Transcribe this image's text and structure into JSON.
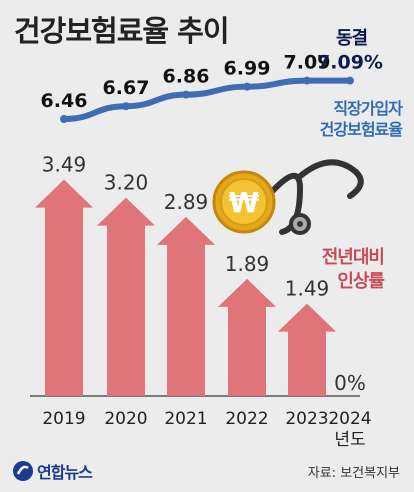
{
  "title": "건강보험료율 추이",
  "freeze_label": "동결",
  "rate_legend": [
    "직장가입자",
    "건강보험료율"
  ],
  "change_legend": [
    "전년대비",
    "인상률"
  ],
  "x_axis_unit": "년도",
  "source": "자료: 보건복지부",
  "logo": {
    "text": "연합뉴스",
    "mark": "yonhap-logo-icon"
  },
  "colors": {
    "line": "#3f6cb5",
    "bar": "#e0747b",
    "text": "#222222",
    "freeze": "#0d1b4d",
    "rate_legend": "#2e6db4",
    "change_legend": "#c94b57"
  },
  "illustration": {
    "icons": [
      "stethoscope-icon",
      "won-coin-icon"
    ]
  },
  "chart_data": [
    {
      "type": "line",
      "x": [
        "2019",
        "2020",
        "2021",
        "2022",
        "2023",
        "2024"
      ],
      "series": [
        {
          "name": "직장가입자 건강보험료율",
          "values": [
            6.46,
            6.67,
            6.86,
            6.99,
            7.09,
            7.09
          ],
          "labels": [
            "6.46",
            "6.67",
            "6.86",
            "6.99",
            "7.09",
            "7.09%"
          ]
        }
      ]
    },
    {
      "type": "bar",
      "categories": [
        "2019",
        "2020",
        "2021",
        "2022",
        "2023",
        "2024"
      ],
      "series": [
        {
          "name": "전년대비 인상률",
          "values": [
            3.49,
            3.2,
            2.89,
            1.89,
            1.49,
            0
          ],
          "labels": [
            "3.49",
            "3.20",
            "2.89",
            "1.89",
            "1.49",
            "0%"
          ]
        }
      ]
    }
  ]
}
